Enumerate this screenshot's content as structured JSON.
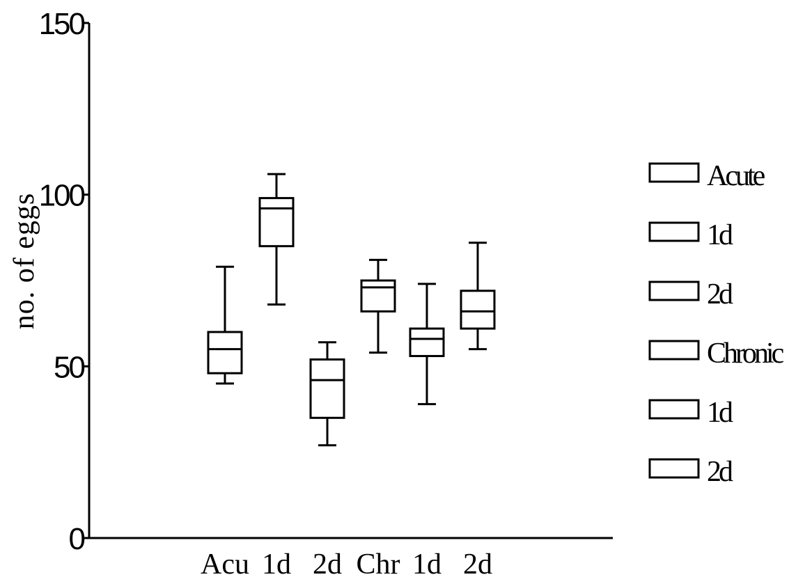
{
  "chart_data": {
    "type": "box",
    "ylabel": "no. of eggs",
    "xlabel": "",
    "ylim": [
      0,
      150
    ],
    "yticks": [
      0,
      50,
      100,
      150
    ],
    "categories": [
      "Acu",
      "1d",
      "2d",
      "Chr",
      "1d",
      "2d"
    ],
    "series": [
      {
        "name": "Acute",
        "min": 45,
        "q1": 48,
        "median": 55,
        "q3": 60,
        "max": 79
      },
      {
        "name": "1d",
        "min": 68,
        "q1": 85,
        "median": 96,
        "q3": 99,
        "max": 106
      },
      {
        "name": "2d",
        "min": 27,
        "q1": 35,
        "median": 46,
        "q3": 52,
        "max": 57
      },
      {
        "name": "Chronic",
        "min": 54,
        "q1": 66,
        "median": 73,
        "q3": 75,
        "max": 81
      },
      {
        "name": "1d",
        "min": 39,
        "q1": 53,
        "median": 58,
        "q3": 61,
        "max": 74
      },
      {
        "name": "2d",
        "min": 55,
        "q1": 61,
        "median": 66,
        "q3": 72,
        "max": 86
      }
    ],
    "legend": {
      "position": "right"
    },
    "grid": false
  }
}
